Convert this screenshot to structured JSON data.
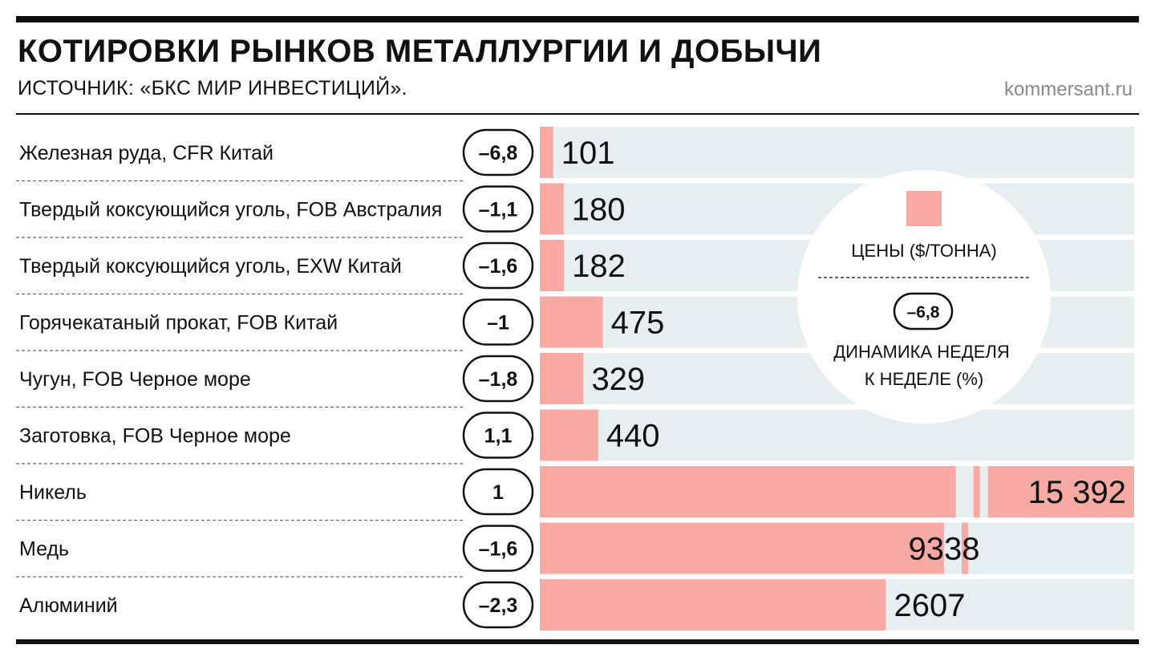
{
  "header": {
    "title": "КОТИРОВКИ РЫНКОВ МЕТАЛЛУРГИИ И ДОБЫЧИ",
    "source": "ИСТОЧНИК: «БКС МИР ИНВЕСТИЦИЙ».",
    "site": "kommersant.ru"
  },
  "legend": {
    "price_label": "ЦЕНЫ ($/ТОННА)",
    "sample_change": "–6,8",
    "change_label_line1": "ДИНАМИКА НЕДЕЛЯ",
    "change_label_line2": "К НЕДЕЛЕ (%)"
  },
  "colors": {
    "bar": "#f7a9a4",
    "track": "#e7eef1",
    "legend_circle": "#ffffff",
    "text": "#111111"
  },
  "chart_data": {
    "type": "bar",
    "orientation": "horizontal",
    "title": "КОТИРОВКИ РЫНКОВ МЕТАЛЛУРГИИ И ДОБЫЧИ",
    "categories": [
      "Железная руда, CFR Китай",
      "Твердый коксующийся уголь, FOB Австралия",
      "Твердый коксующийся уголь, EXW Китай",
      "Горячекатаный прокат, FOB Китай",
      "Чугун, FOB Черное море",
      "Заготовка, FOB Черное море",
      "Никель",
      "Медь",
      "Алюминий"
    ],
    "series": [
      {
        "name": "ЦЕНЫ ($/ТОННА)",
        "values": [
          101,
          180,
          182,
          475,
          329,
          440,
          15392,
          9338,
          2607
        ],
        "labels": [
          "101",
          "180",
          "182",
          "475",
          "329",
          "440",
          "15 392",
          "9338",
          "2607"
        ],
        "broken_axis": [
          false,
          false,
          false,
          false,
          false,
          false,
          true,
          true,
          false
        ]
      },
      {
        "name": "ДИНАМИКА НЕДЕЛЯ К НЕДЕЛЕ (%)",
        "values": [
          -6.8,
          -1.1,
          -1.6,
          -1,
          -1.8,
          1.1,
          1,
          -1.6,
          -2.3
        ],
        "labels": [
          "–6,8",
          "–1,1",
          "–1,6",
          "–1",
          "–1,8",
          "1,1",
          "1",
          "–1,6",
          "–2,3"
        ]
      }
    ],
    "legend_position": "right",
    "grid": false
  }
}
